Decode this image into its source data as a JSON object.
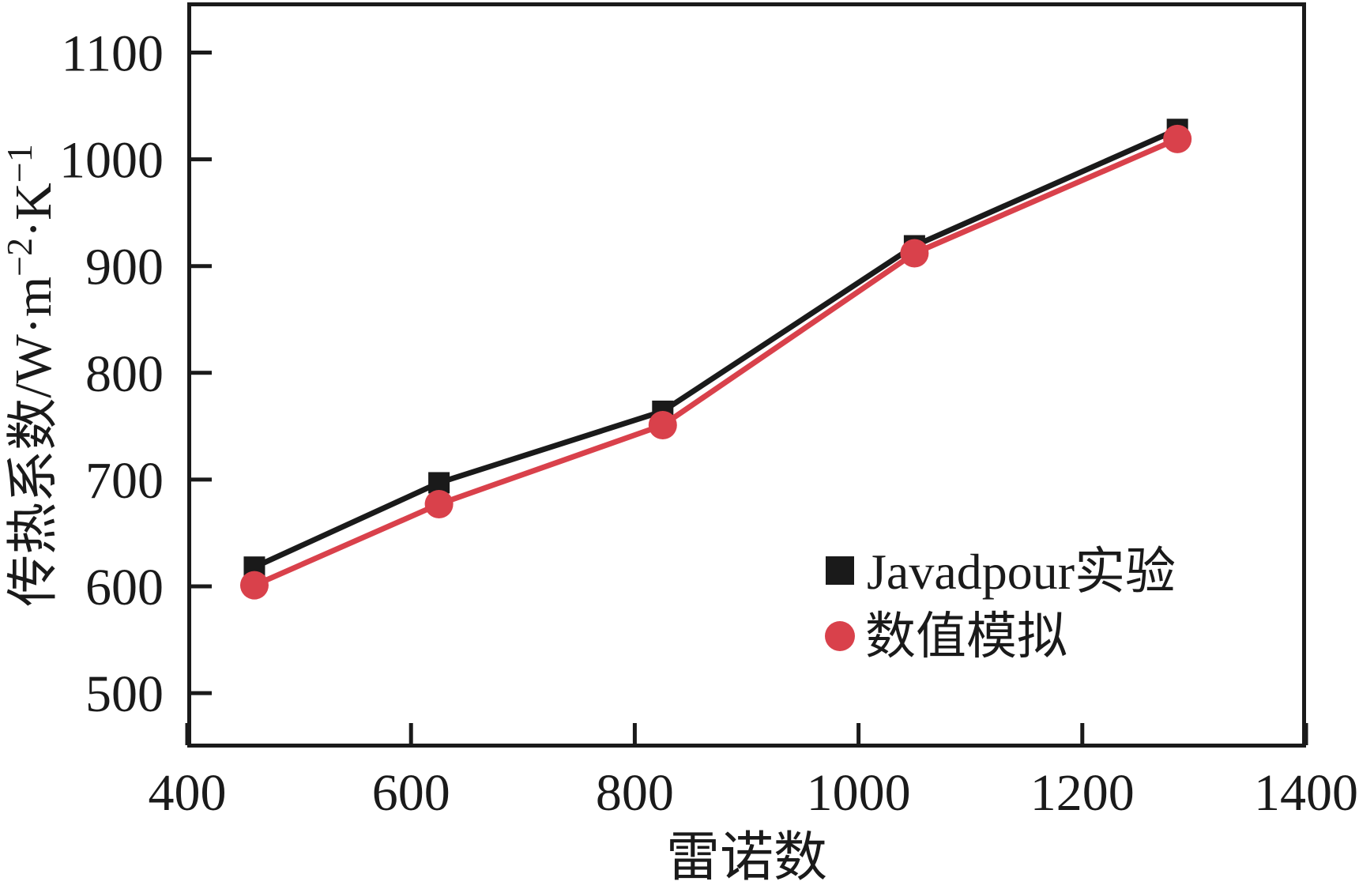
{
  "chart_data": {
    "type": "line",
    "title": "",
    "xlabel": "雷诺数",
    "ylabel": "传热系数/W·m−2·K−1",
    "x": [
      460,
      625,
      825,
      1050,
      1285
    ],
    "series": [
      {
        "name": "Javadpour实验",
        "marker": "square",
        "color": "#1a1a1a",
        "values": [
          618,
          697,
          764,
          919,
          1028
        ]
      },
      {
        "name": "数值模拟",
        "marker": "circle",
        "color": "#d9414b",
        "values": [
          601,
          677,
          751,
          912,
          1019
        ]
      }
    ],
    "xlim": [
      400,
      1400
    ],
    "ylim": [
      449,
      1147
    ],
    "x_ticks": [
      400,
      600,
      800,
      1000,
      1200,
      1400
    ],
    "y_ticks": [
      500,
      600,
      700,
      800,
      900,
      1000,
      1100
    ],
    "grid": false,
    "legend_position": "inside lower right"
  },
  "ylabel_parts": {
    "p1": "传热系数/W·m",
    "s1": "−2",
    "p2": "·K",
    "s2": "−1"
  },
  "frame_color": "#1a1a1a"
}
